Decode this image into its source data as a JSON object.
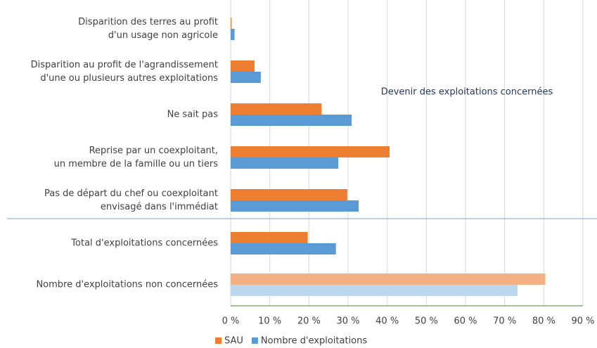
{
  "chart_data": {
    "type": "bar",
    "orientation": "horizontal",
    "annotation": "Devenir des exploitations concernées",
    "categories": [
      "Disparition des terres au profit\nd'un usage non agricole",
      "Disparition au profit de l'agrandissement\nd'une ou plusieurs autres exploitations",
      "Ne sait pas",
      "Reprise par un coexploitant,\nun membre de la famille ou un tiers",
      "Pas de départ du chef ou coexploitant\nenvisagé dans l'immédiat",
      "Total d'exploitations concernées",
      "Nombre d'exploitations non concernées"
    ],
    "series": [
      {
        "name": "SAU",
        "color": "#ed7d31",
        "values": [
          0.2,
          6.1,
          23.2,
          40.6,
          29.8,
          19.7,
          80.4
        ],
        "point_colors": [
          null,
          null,
          null,
          null,
          null,
          null,
          "#f4b183"
        ]
      },
      {
        "name": "Nombre d'exploitations",
        "color": "#5b9bd5",
        "values": [
          1.0,
          7.7,
          30.9,
          27.5,
          32.7,
          26.9,
          73.3
        ],
        "point_colors": [
          null,
          null,
          null,
          null,
          null,
          null,
          "#bdd7ee"
        ]
      }
    ],
    "xlim": [
      0,
      90
    ],
    "xticks": [
      {
        "value": 0,
        "label": "0 %"
      },
      {
        "value": 10,
        "label": "10 %"
      },
      {
        "value": 20,
        "label": "20 %"
      },
      {
        "value": 30,
        "label": "30 %"
      },
      {
        "value": 40,
        "label": "40 %"
      },
      {
        "value": 50,
        "label": "50 %"
      },
      {
        "value": 60,
        "label": "60 %"
      },
      {
        "value": 70,
        "label": "70 %"
      },
      {
        "value": 80,
        "label": "80 %"
      },
      {
        "value": 90,
        "label": "90 %"
      }
    ],
    "grid": true,
    "legend": "bottom"
  }
}
